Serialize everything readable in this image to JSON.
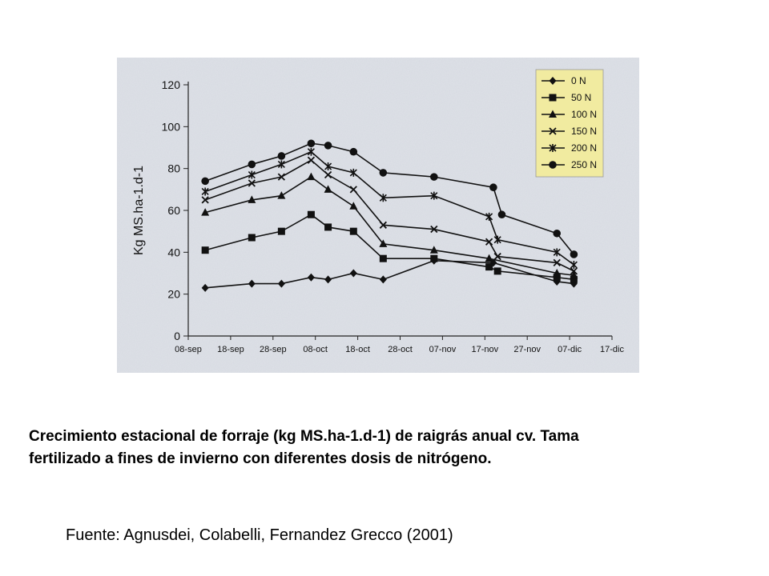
{
  "chart_data": {
    "type": "line",
    "ylabel": "Kg MS.ha-1.d-1",
    "ylim": [
      0,
      120
    ],
    "yticks": [
      0,
      20,
      40,
      60,
      80,
      100,
      120
    ],
    "xlim": [
      "08-sep",
      "17-dic"
    ],
    "xticks": [
      "08-sep",
      "18-sep",
      "28-sep",
      "08-oct",
      "18-oct",
      "28-oct",
      "07-nov",
      "17-nov",
      "27-nov",
      "07-dic",
      "17-dic"
    ],
    "legend_position": "top-right",
    "grid": false,
    "series": [
      {
        "name": "0 N",
        "marker": "diamond",
        "x": [
          "12-sep",
          "23-sep",
          "30-sep",
          "07-oct",
          "11-oct",
          "17-oct",
          "24-oct",
          "05-nov",
          "19-nov",
          "04-dic",
          "08-dic"
        ],
        "values": [
          23,
          25,
          25,
          28,
          27,
          30,
          27,
          36,
          35,
          26,
          25
        ]
      },
      {
        "name": "50 N",
        "marker": "square",
        "x": [
          "12-sep",
          "23-sep",
          "30-sep",
          "07-oct",
          "11-oct",
          "17-oct",
          "24-oct",
          "05-nov",
          "18-nov",
          "20-nov",
          "04-dic",
          "08-dic"
        ],
        "values": [
          41,
          47,
          50,
          58,
          52,
          50,
          37,
          37,
          33,
          31,
          28,
          27
        ]
      },
      {
        "name": "100 N",
        "marker": "triangle",
        "x": [
          "12-sep",
          "23-sep",
          "30-sep",
          "07-oct",
          "11-oct",
          "17-oct",
          "24-oct",
          "05-nov",
          "18-nov",
          "04-dic",
          "08-dic"
        ],
        "values": [
          59,
          65,
          67,
          76,
          70,
          62,
          44,
          41,
          37,
          30,
          29
        ]
      },
      {
        "name": "150 N",
        "marker": "x",
        "x": [
          "12-sep",
          "23-sep",
          "30-sep",
          "07-oct",
          "11-oct",
          "17-oct",
          "24-oct",
          "05-nov",
          "18-nov",
          "20-nov",
          "04-dic",
          "08-dic"
        ],
        "values": [
          65,
          73,
          76,
          84,
          77,
          70,
          53,
          51,
          45,
          38,
          35,
          31
        ]
      },
      {
        "name": "200 N",
        "marker": "star",
        "x": [
          "12-sep",
          "23-sep",
          "30-sep",
          "07-oct",
          "11-oct",
          "17-oct",
          "24-oct",
          "05-nov",
          "18-nov",
          "20-nov",
          "04-dic",
          "08-dic"
        ],
        "values": [
          69,
          77,
          82,
          88,
          81,
          78,
          66,
          67,
          57,
          46,
          40,
          34
        ]
      },
      {
        "name": "250 N",
        "marker": "circle",
        "x": [
          "12-sep",
          "23-sep",
          "30-sep",
          "07-oct",
          "11-oct",
          "17-oct",
          "24-oct",
          "05-nov",
          "19-nov",
          "21-nov",
          "04-dic",
          "08-dic"
        ],
        "values": [
          74,
          82,
          86,
          92,
          91,
          88,
          78,
          76,
          71,
          58,
          49,
          39
        ]
      }
    ]
  },
  "caption": {
    "line1": "Crecimiento estacional de forraje (kg MS.ha-1.d-1) de raigrás anual cv. Tama",
    "line2": "fertilizado a fines de invierno con diferentes dosis de nitrógeno."
  },
  "source": "Fuente: Agnusdei, Colabelli, Fernandez Grecco (2001)",
  "colors": {
    "panel_background": "#dfe2e8",
    "legend_background": "#f1eba0",
    "series_line": "#111111"
  }
}
